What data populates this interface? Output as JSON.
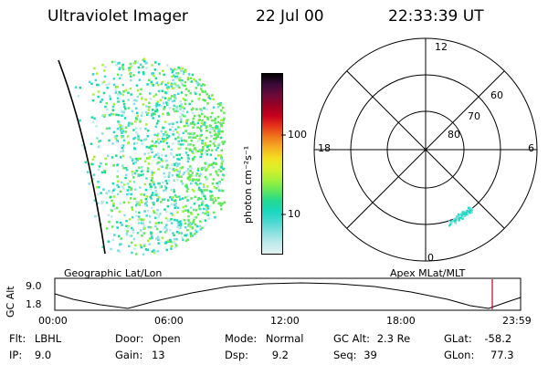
{
  "header": {
    "title": "Ultraviolet Imager",
    "date": "22 Jul 00",
    "time": "22:33:39 UT"
  },
  "colorbar": {
    "label": "photon cm⁻²s⁻¹",
    "ticks": [
      "100",
      "10"
    ],
    "colors": [
      "#000000",
      "#3a0a38",
      "#6b0a3a",
      "#9a0022",
      "#c8001e",
      "#e8381a",
      "#f07a1c",
      "#f6b020",
      "#f2e020",
      "#d8f02a",
      "#a6f03a",
      "#62e85a",
      "#22d890",
      "#1ad8c0",
      "#4ad8d0",
      "#8ae0e0",
      "#bfeaea",
      "#e2f2f2"
    ]
  },
  "left_panel": {
    "caption": "Geographic Lat/Lon"
  },
  "polar_plot": {
    "caption": "Apex MLat/MLT",
    "hour_labels": {
      "top": "12",
      "left": "18",
      "right": "6",
      "bottom": "0"
    },
    "lat_labels": [
      "60",
      "70",
      "80"
    ]
  },
  "timeline": {
    "axis_label": "GC Alt",
    "y_ticks": [
      "9.0",
      "1.8"
    ],
    "x_ticks": [
      "00:00",
      "06:00",
      "12:00",
      "18:00",
      "23:59"
    ],
    "marker_color": "#c0002a"
  },
  "status": [
    {
      "k": "Flt:",
      "v": "LBHL"
    },
    {
      "k": "IP:",
      "v": "9.0"
    },
    {
      "k": "Door:",
      "v": "Open"
    },
    {
      "k": "Gain:",
      "v": "13"
    },
    {
      "k": "Mode:",
      "v": "Normal"
    },
    {
      "k": "Dsp:",
      "v": "9.2"
    },
    {
      "k": "GC Alt:",
      "v": "2.3 Re"
    },
    {
      "k": "Seq:",
      "v": "39"
    },
    {
      "k": "GLat:",
      "v": "-58.2"
    },
    {
      "k": "GLon:",
      "v": "77.3"
    }
  ]
}
